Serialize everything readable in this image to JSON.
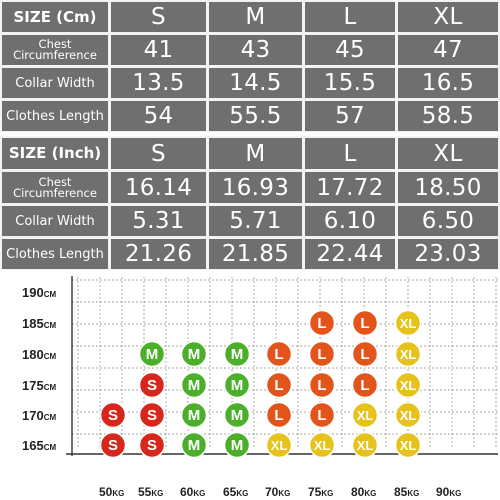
{
  "cm_table": {
    "header": {
      "label": "SIZE (Cm)",
      "sizes": [
        "S",
        "M",
        "L",
        "XL"
      ]
    },
    "rows": [
      {
        "label": "Chest\nCircumference",
        "values": [
          "41",
          "43",
          "45",
          "47"
        ]
      },
      {
        "label": "Collar Width",
        "values": [
          "13.5",
          "14.5",
          "15.5",
          "16.5"
        ]
      },
      {
        "label": "Clothes Length",
        "values": [
          "54",
          "55.5",
          "57",
          "58.5"
        ]
      }
    ]
  },
  "inch_table": {
    "header": {
      "label": "SIZE (Inch)",
      "sizes": [
        "S",
        "M",
        "L",
        "XL"
      ]
    },
    "rows": [
      {
        "label": "Chest\nCircumference",
        "values": [
          "16.14",
          "16.93",
          "17.72",
          "18.50"
        ]
      },
      {
        "label": "Collar Width",
        "values": [
          "5.31",
          "5.71",
          "6.10",
          "6.50"
        ]
      },
      {
        "label": "Clothes Length",
        "values": [
          "21.26",
          "21.85",
          "22.44",
          "23.03"
        ]
      }
    ]
  },
  "chart_data": {
    "type": "table",
    "y_ticks": [
      "190CM",
      "185CM",
      "180CM",
      "175CM",
      "170CM",
      "165CM"
    ],
    "x_ticks": [
      "50KG",
      "55KG",
      "60KG",
      "65KG",
      "70KG",
      "75KG",
      "80KG",
      "85KG",
      "90KG"
    ],
    "size_colors": {
      "S": "#d7261b",
      "M": "#4caf2a",
      "L": "#e2541a",
      "XL": "#e6c21a"
    },
    "points": [
      {
        "height": "185CM",
        "weight": "75KG",
        "size": "L"
      },
      {
        "height": "185CM",
        "weight": "80KG",
        "size": "L"
      },
      {
        "height": "185CM",
        "weight": "85KG",
        "size": "XL"
      },
      {
        "height": "180CM",
        "weight": "55KG",
        "size": "M"
      },
      {
        "height": "180CM",
        "weight": "60KG",
        "size": "M"
      },
      {
        "height": "180CM",
        "weight": "65KG",
        "size": "M"
      },
      {
        "height": "180CM",
        "weight": "70KG",
        "size": "L"
      },
      {
        "height": "180CM",
        "weight": "75KG",
        "size": "L"
      },
      {
        "height": "180CM",
        "weight": "80KG",
        "size": "L"
      },
      {
        "height": "180CM",
        "weight": "85KG",
        "size": "XL"
      },
      {
        "height": "175CM",
        "weight": "55KG",
        "size": "S"
      },
      {
        "height": "175CM",
        "weight": "60KG",
        "size": "M"
      },
      {
        "height": "175CM",
        "weight": "65KG",
        "size": "M"
      },
      {
        "height": "175CM",
        "weight": "70KG",
        "size": "L"
      },
      {
        "height": "175CM",
        "weight": "75KG",
        "size": "L"
      },
      {
        "height": "175CM",
        "weight": "80KG",
        "size": "L"
      },
      {
        "height": "175CM",
        "weight": "85KG",
        "size": "XL"
      },
      {
        "height": "170CM",
        "weight": "50KG",
        "size": "S"
      },
      {
        "height": "170CM",
        "weight": "55KG",
        "size": "S"
      },
      {
        "height": "170CM",
        "weight": "60KG",
        "size": "M"
      },
      {
        "height": "170CM",
        "weight": "65KG",
        "size": "M"
      },
      {
        "height": "170CM",
        "weight": "70KG",
        "size": "L"
      },
      {
        "height": "170CM",
        "weight": "75KG",
        "size": "L"
      },
      {
        "height": "170CM",
        "weight": "80KG",
        "size": "XL"
      },
      {
        "height": "170CM",
        "weight": "85KG",
        "size": "XL"
      },
      {
        "height": "165CM",
        "weight": "50KG",
        "size": "S"
      },
      {
        "height": "165CM",
        "weight": "55KG",
        "size": "S"
      },
      {
        "height": "165CM",
        "weight": "60KG",
        "size": "M"
      },
      {
        "height": "165CM",
        "weight": "65KG",
        "size": "M"
      },
      {
        "height": "165CM",
        "weight": "70KG",
        "size": "XL"
      },
      {
        "height": "165CM",
        "weight": "75KG",
        "size": "XL"
      },
      {
        "height": "165CM",
        "weight": "80KG",
        "size": "XL"
      },
      {
        "height": "165CM",
        "weight": "85KG",
        "size": "XL"
      }
    ]
  }
}
